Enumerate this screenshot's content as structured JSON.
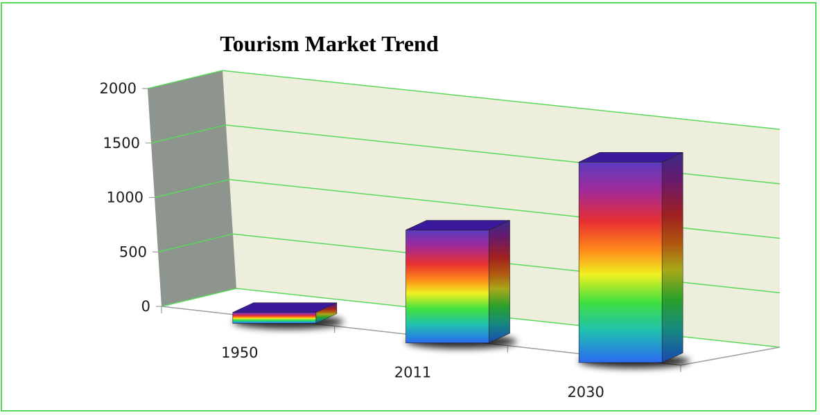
{
  "chart_data": {
    "type": "bar",
    "title": "Tourism Market Trend",
    "categories": [
      "1950",
      "2011",
      "2030"
    ],
    "values": [
      25,
      980,
      1800
    ],
    "ylim": [
      0,
      2000
    ],
    "yticks": [
      "0",
      "500",
      "1000",
      "1500",
      "2000"
    ],
    "grid": true,
    "legend": "none",
    "three_d": true
  },
  "colors": {
    "border": "#5ad85a",
    "gridline": "#5ad85a",
    "back_wall": "#eeeedd",
    "side_wall": "#8e948e",
    "bar_top": "#3a1a9a",
    "bar_gradient": [
      "#5a3cc0",
      "#9a2aa0",
      "#e83030",
      "#ff8a1a",
      "#f0f020",
      "#40e040",
      "#20c0b0",
      "#2a6af0"
    ]
  }
}
